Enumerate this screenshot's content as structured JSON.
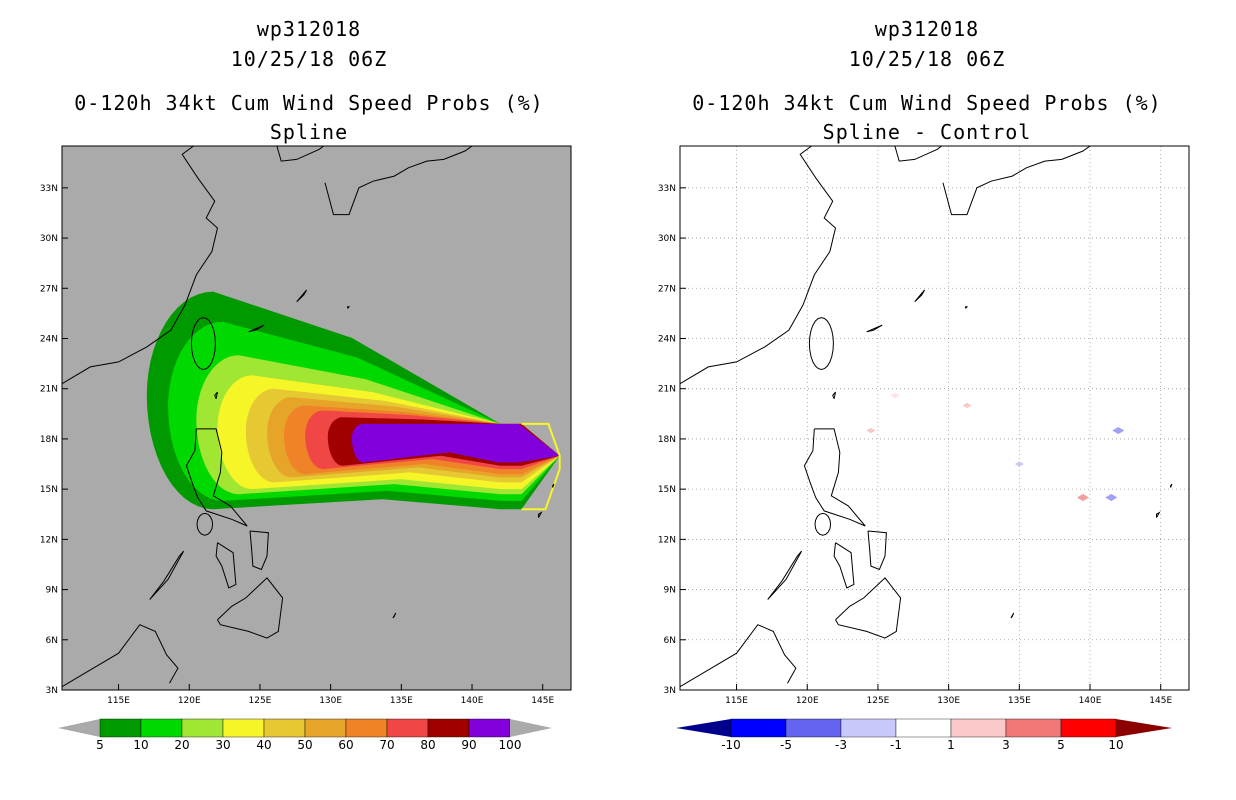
{
  "chart_data": [
    {
      "type": "heatmap",
      "storm_id": "wp312018",
      "datetime": "10/25/18 06Z",
      "title": "0-120h 34kt Cum Wind Speed Probs (%)",
      "subtitle": "Spline",
      "xlabel": "",
      "ylabel": "",
      "xlim": [
        111,
        147
      ],
      "ylim": [
        3,
        35.5
      ],
      "grid": false,
      "background_color": "#aaaaaa",
      "xticks": [
        "115E",
        "120E",
        "125E",
        "130E",
        "135E",
        "140E",
        "145E"
      ],
      "yticks": [
        "3N",
        "6N",
        "9N",
        "12N",
        "15N",
        "18N",
        "21N",
        "24N",
        "27N",
        "30N",
        "33N"
      ],
      "colorbar": {
        "labels": [
          "5",
          "10",
          "20",
          "30",
          "40",
          "50",
          "60",
          "70",
          "80",
          "90",
          "100"
        ],
        "colors": [
          "#009a00",
          "#00d900",
          "#a0e632",
          "#f5f528",
          "#e6c832",
          "#e6a529",
          "#f08227",
          "#f04646",
          "#a00000",
          "#8200dc"
        ],
        "end_color": "#aaaaaa"
      },
      "contours": [
        {
          "level": 5,
          "color": "#009a00",
          "region": {
            "west": 117.0,
            "east": 143.5,
            "north": 26.8,
            "south": 13.8
          }
        },
        {
          "level": 10,
          "color": "#00d900",
          "region": {
            "west": 118.5,
            "east": 143.5,
            "north": 25.0,
            "south": 14.3
          }
        },
        {
          "level": 20,
          "color": "#a0e632",
          "region": {
            "west": 120.5,
            "east": 143.5,
            "north": 23.0,
            "south": 14.7
          }
        },
        {
          "level": 30,
          "color": "#f5f528",
          "region": {
            "west": 122.0,
            "east": 143.5,
            "north": 21.8,
            "south": 15.0
          }
        },
        {
          "level": 40,
          "color": "#e6c832",
          "region": {
            "west": 124.0,
            "east": 143.5,
            "north": 21.0,
            "south": 15.4
          }
        },
        {
          "level": 50,
          "color": "#e6a529",
          "region": {
            "west": 125.5,
            "east": 143.5,
            "north": 20.5,
            "south": 15.7
          }
        },
        {
          "level": 60,
          "color": "#f08227",
          "region": {
            "west": 126.7,
            "east": 143.5,
            "north": 20.0,
            "south": 15.9
          }
        },
        {
          "level": 70,
          "color": "#f04646",
          "region": {
            "west": 128.2,
            "east": 143.5,
            "north": 19.7,
            "south": 16.2
          }
        },
        {
          "level": 80,
          "color": "#a00000",
          "region": {
            "west": 129.8,
            "east": 143.5,
            "north": 19.3,
            "south": 16.4
          }
        },
        {
          "level": 90,
          "color": "#8200dc",
          "region": {
            "west": 131.5,
            "east": 143.3,
            "north": 18.9,
            "south": 16.6
          }
        }
      ],
      "core_region": {
        "color": "#8200dc",
        "east_tip": 146.2
      }
    },
    {
      "type": "heatmap",
      "storm_id": "wp312018",
      "datetime": "10/25/18 06Z",
      "title": "0-120h 34kt Cum Wind Speed Probs (%)",
      "subtitle": "Spline - Control",
      "xlabel": "",
      "ylabel": "",
      "xlim": [
        111,
        147
      ],
      "ylim": [
        3,
        35.5
      ],
      "grid": true,
      "background_color": "#ffffff",
      "xticks": [
        "115E",
        "120E",
        "125E",
        "130E",
        "135E",
        "140E",
        "145E"
      ],
      "yticks": [
        "3N",
        "6N",
        "9N",
        "12N",
        "15N",
        "18N",
        "21N",
        "24N",
        "27N",
        "30N",
        "33N"
      ],
      "colorbar": {
        "labels": [
          "-10",
          "-5",
          "-3",
          "-1",
          "1",
          "3",
          "5",
          "10"
        ],
        "colors": [
          "#0000ff",
          "#6464f0",
          "#c8c8fa",
          "#ffffff",
          "#fac8c8",
          "#f07878",
          "#ff0000"
        ],
        "end_low": "#00008c",
        "end_high": "#8c0000"
      },
      "anomalies": [
        {
          "lon": 124.5,
          "lat": 18.5,
          "value": 2,
          "color": "#fac8c8"
        },
        {
          "lon": 126.2,
          "lat": 20.6,
          "value": 1.5,
          "color": "#fde4e4"
        },
        {
          "lon": 131.3,
          "lat": 20.0,
          "value": 2,
          "color": "#fac8c8"
        },
        {
          "lon": 135.0,
          "lat": 16.5,
          "value": -2,
          "color": "#c8c8fa"
        },
        {
          "lon": 142.0,
          "lat": 18.5,
          "value": -3,
          "color": "#a0a0f5"
        },
        {
          "lon": 139.5,
          "lat": 14.5,
          "value": 3,
          "color": "#f4a0a0"
        },
        {
          "lon": 141.5,
          "lat": 14.5,
          "value": -3,
          "color": "#a0a0f5"
        }
      ]
    }
  ]
}
